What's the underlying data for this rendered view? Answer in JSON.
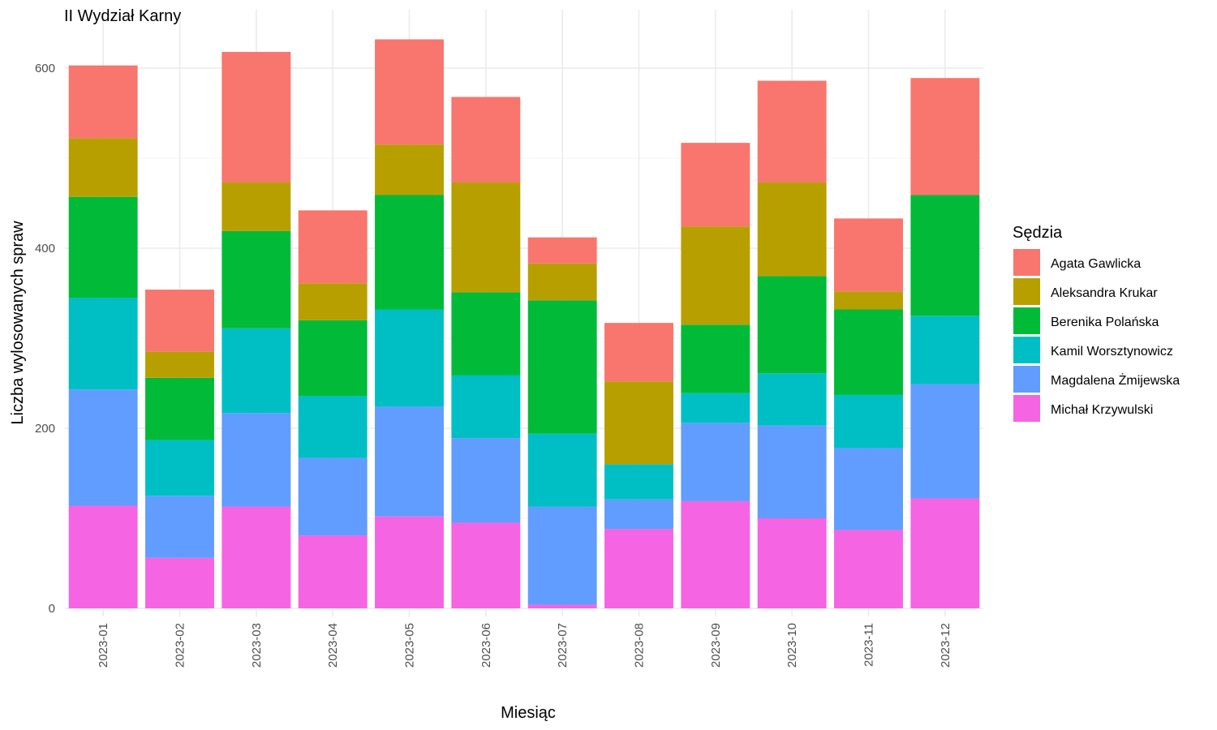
{
  "chart_data": {
    "type": "bar",
    "stacked": true,
    "title": "II Wydział Karny",
    "xlabel": "Miesiąc",
    "ylabel": "Liczba wylosowanych spraw",
    "ylim": [
      0,
      640
    ],
    "yticks": [
      0,
      200,
      400,
      600
    ],
    "grid": true,
    "legend_position": "right",
    "legend_title": "Sędzia",
    "categories": [
      "2023-01",
      "2023-02",
      "2023-03",
      "2023-04",
      "2023-05",
      "2023-06",
      "2023-07",
      "2023-08",
      "2023-09",
      "2023-10",
      "2023-11",
      "2023-12"
    ],
    "series": [
      {
        "name": "Agata Gawlicka",
        "color": "#F8766D",
        "values": [
          81,
          69,
          145,
          81,
          117,
          95,
          29,
          65,
          93,
          113,
          81,
          130
        ]
      },
      {
        "name": "Aleksandra Krukar",
        "color": "#B79F00",
        "values": [
          65,
          29,
          54,
          41,
          56,
          122,
          41,
          92,
          109,
          104,
          20,
          0
        ]
      },
      {
        "name": "Berenika Polańska",
        "color": "#00BA38",
        "values": [
          112,
          69,
          108,
          84,
          127,
          92,
          148,
          0,
          76,
          108,
          95,
          134
        ]
      },
      {
        "name": "Kamil Worsztynowicz",
        "color": "#00BFC4",
        "values": [
          102,
          62,
          94,
          69,
          108,
          70,
          81,
          39,
          33,
          58,
          59,
          76
        ]
      },
      {
        "name": "Magdalena Żmijewska",
        "color": "#619CFF",
        "values": [
          129,
          69,
          104,
          86,
          122,
          94,
          109,
          33,
          87,
          103,
          91,
          127
        ]
      },
      {
        "name": "Michał Krzywulski",
        "color": "#F564E3",
        "values": [
          114,
          56,
          113,
          81,
          102,
          95,
          4,
          88,
          119,
          100,
          87,
          122
        ]
      }
    ]
  }
}
